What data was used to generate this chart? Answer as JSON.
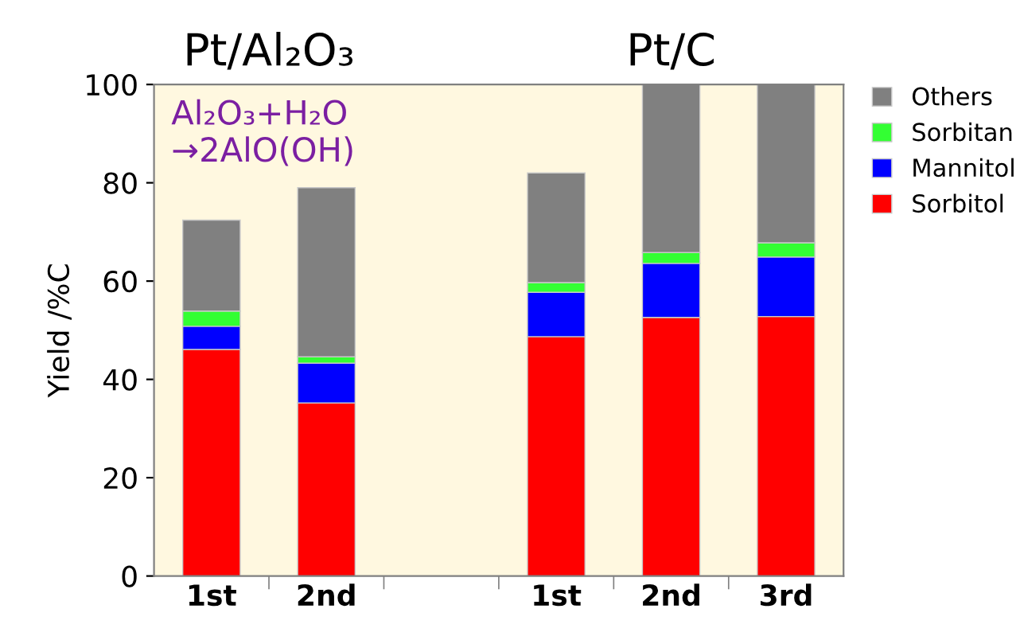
{
  "chart_data": {
    "type": "bar",
    "stacked": true,
    "ylabel": "Yield /%C",
    "categories": [
      "1st",
      "2nd",
      null,
      "1st",
      "2nd",
      "3rd"
    ],
    "series": [
      {
        "name": "Sorbitol",
        "color": "#ff0000",
        "values": [
          46.1,
          35.2,
          null,
          48.7,
          52.6,
          52.8
        ]
      },
      {
        "name": "Mannitol",
        "color": "#0000ff",
        "values": [
          4.7,
          8.1,
          null,
          9.0,
          11.0,
          12.1
        ]
      },
      {
        "name": "Sorbitan",
        "color": "#33ff33",
        "values": [
          3.1,
          1.3,
          null,
          2.0,
          2.2,
          2.9
        ]
      },
      {
        "name": "Others",
        "color": "#808080",
        "values": [
          18.5,
          34.4,
          null,
          22.3,
          34.2,
          32.2
        ]
      }
    ],
    "ylim": [
      0,
      100
    ],
    "yticks": [
      0,
      20,
      40,
      60,
      80,
      100
    ],
    "grid": false,
    "legend": "right",
    "annotations": [
      "Pt/Al₂O₃",
      "Pt/C",
      "Al₂O₃+H₂O\n→2AlO(OH)"
    ]
  }
}
